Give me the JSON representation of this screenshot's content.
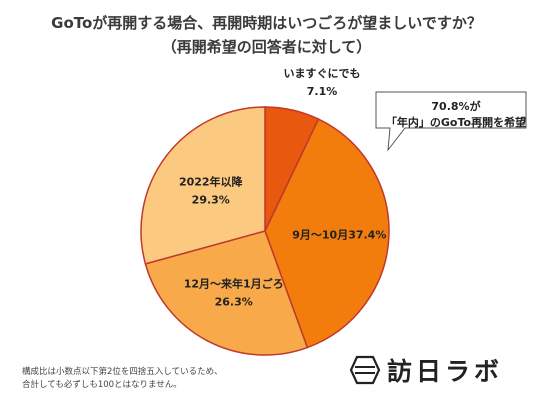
{
  "header": {
    "title_line1": "GoToが再開する場合、再開時期はいつごろが望ましいですか？",
    "title_line2": "（再開希望の回答者に対して）"
  },
  "callout": {
    "line1": "70.8%が",
    "line2": "「年内」のGoTo再開を希望"
  },
  "footnote": {
    "line1": "構成比は小数点以下第2位を四捨五入しているため、",
    "line2": "合計しても必ずしも100とはなりません。"
  },
  "logo": {
    "text": "訪日ラボ"
  },
  "chart_data": {
    "type": "pie",
    "title": "GoToが再開する場合、再開時期はいつごろが望ましいですか？",
    "subtitle": "（再開希望の回答者に対して）",
    "start": "top",
    "direction": "clockwise",
    "slices": [
      {
        "label": "いますぐにでも",
        "value": 7.1,
        "value_text": "7.1%",
        "color": "#e8580f",
        "label_placement": "outside"
      },
      {
        "label": "9月〜10月",
        "value": 37.4,
        "value_text": "37.4%",
        "color": "#f27d0c",
        "label_placement": "inside-inline"
      },
      {
        "label": "12月〜来年1月ごろ",
        "value": 26.3,
        "value_text": "26.3%",
        "color": "#f8aa4b",
        "label_placement": "inside"
      },
      {
        "label": "2022年以降",
        "value": 29.3,
        "value_text": "29.3%",
        "color": "#fcc980",
        "label_placement": "inside"
      }
    ],
    "slice_border_color": "#c0392b"
  }
}
